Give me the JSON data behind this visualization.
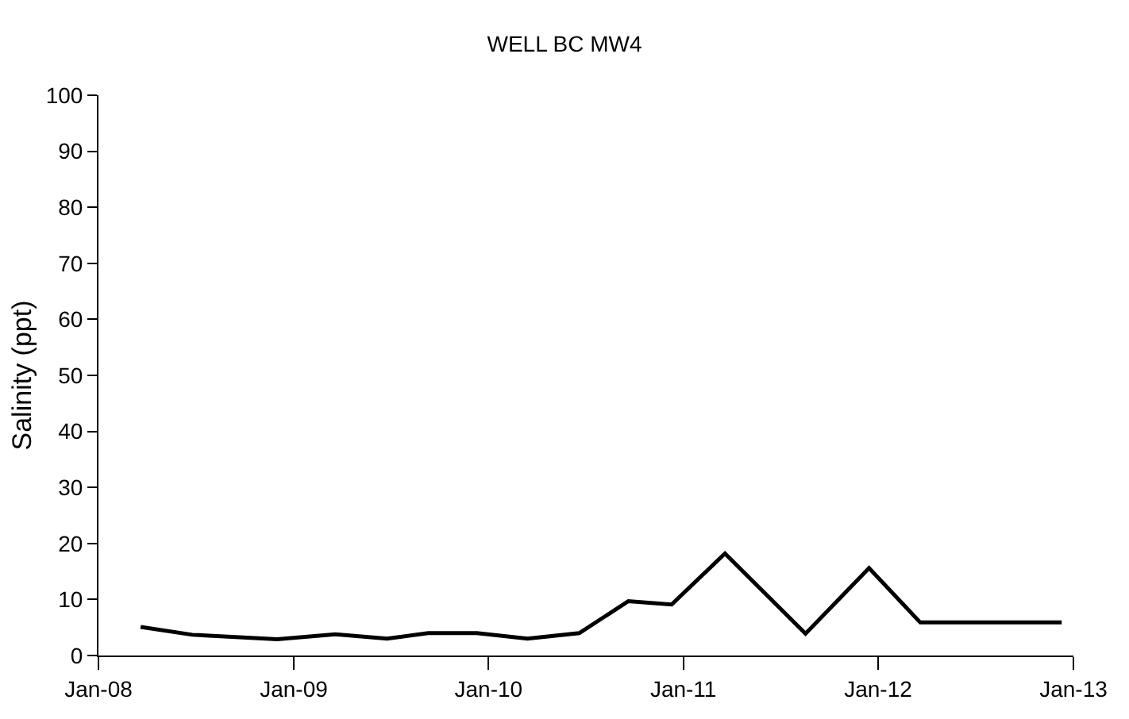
{
  "chart_data": {
    "type": "line",
    "title": "WELL BC MW4",
    "ylabel": "Salinity (ppt)",
    "x": [
      "2008-03-20",
      "2008-06-25",
      "2008-12-01",
      "2009-03-20",
      "2009-06-25",
      "2009-09-10",
      "2009-12-10",
      "2010-03-15",
      "2010-06-20",
      "2010-09-20",
      "2010-12-10",
      "2011-03-20",
      "2011-08-18",
      "2011-12-15",
      "2012-03-20",
      "2012-12-10"
    ],
    "series": [
      {
        "color": "#000000",
        "values": [
          5.1,
          3.7,
          2.9,
          3.8,
          3,
          4,
          4,
          3,
          4,
          9.7,
          9.1,
          18.2,
          3.9,
          15.6,
          5.9,
          5.9
        ]
      }
    ],
    "xlim": [
      "2008-01-01",
      "2013-01-01"
    ],
    "xticks": [
      {
        "value": "2008-01-01",
        "label": "Jan-08"
      },
      {
        "value": "2009-01-01",
        "label": "Jan-09"
      },
      {
        "value": "2010-01-01",
        "label": "Jan-10"
      },
      {
        "value": "2011-01-01",
        "label": "Jan-11"
      },
      {
        "value": "2012-01-01",
        "label": "Jan-12"
      },
      {
        "value": "2013-01-01",
        "label": "Jan-13"
      }
    ],
    "ylim": [
      0,
      100
    ],
    "yticks": [
      0,
      10,
      20,
      30,
      40,
      50,
      60,
      70,
      80,
      90,
      100
    ],
    "marker": "none",
    "line_style": "solid"
  }
}
